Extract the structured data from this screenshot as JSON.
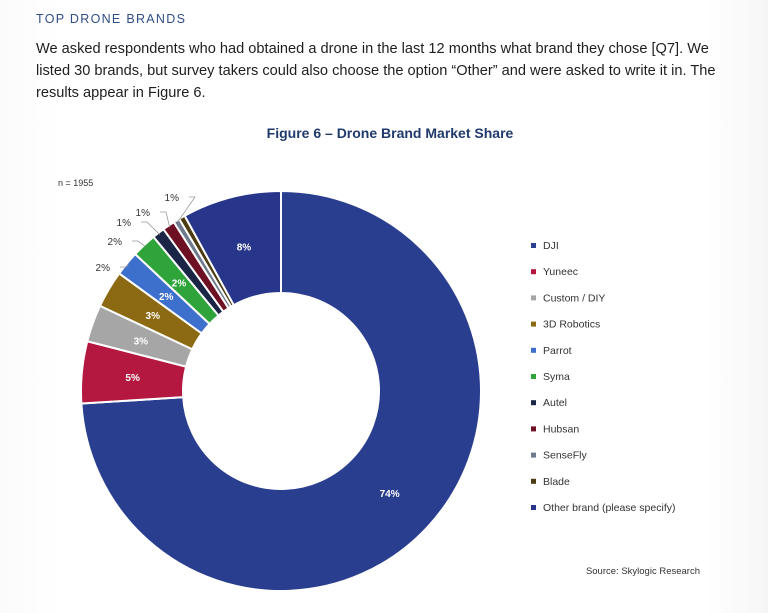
{
  "section": {
    "heading": "TOP DRONE BRANDS",
    "intro": "We asked respondents who had obtained a drone in the last 12 months what brand they chose [Q7]. We listed 30 brands, but survey takers could also choose the option “Other” and were asked to write it in. The results appear in Figure 6."
  },
  "figure": {
    "source": "Source: Skylogic Research"
  },
  "chart_data": {
    "type": "pie",
    "donut": true,
    "title": "Figure 6 – Drone Brand Market Share",
    "note": "n = 1955",
    "legend_position": "right",
    "series": [
      {
        "name": "DJI",
        "value": 74,
        "label": "74%",
        "color": "#2a3e8f"
      },
      {
        "name": "Yuneec",
        "value": 5,
        "label": "5%",
        "color": "#b4173f"
      },
      {
        "name": "Custom / DIY",
        "value": 3,
        "label": "3%",
        "color": "#a6a6a6"
      },
      {
        "name": "3D Robotics",
        "value": 3,
        "label": "3%",
        "color": "#8c6a14"
      },
      {
        "name": "Parrot",
        "value": 2,
        "label": "2%",
        "color": "#3d6fcc"
      },
      {
        "name": "Syma",
        "value": 2,
        "label": "2%",
        "color": "#2ea43a"
      },
      {
        "name": "Autel",
        "value": 1,
        "label": "1%",
        "color": "#1b2545"
      },
      {
        "name": "Hubsan",
        "value": 1,
        "label": "1%",
        "color": "#6e1024"
      },
      {
        "name": "SenseFly",
        "value": 0.5,
        "label": "1%",
        "color": "#6f7a8c"
      },
      {
        "name": "Blade",
        "value": 0.5,
        "label": "1%",
        "color": "#4d3b12"
      },
      {
        "name": "Other brand (please specify)",
        "value": 8,
        "label": "8%",
        "color": "#27358a"
      }
    ]
  }
}
